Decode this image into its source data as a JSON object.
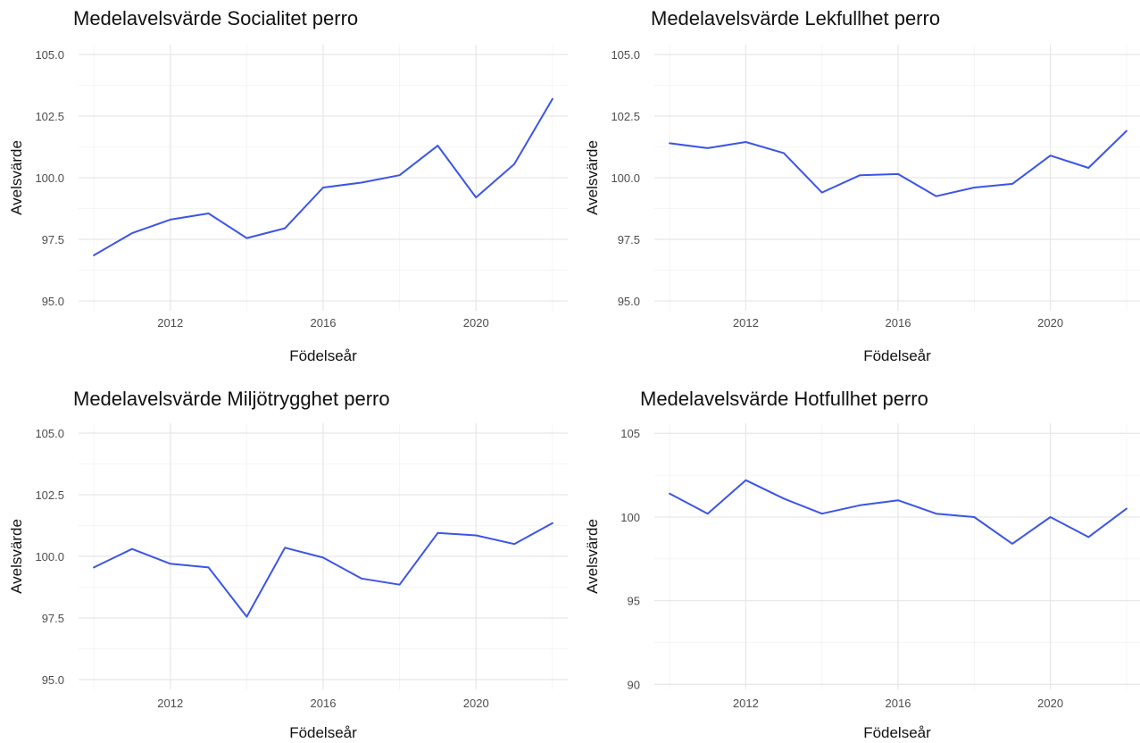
{
  "colors": {
    "line": "#3b55e6",
    "grid_major": "#e6e6e6",
    "grid_minor": "#f2f2f2"
  },
  "chart_data": [
    {
      "type": "line",
      "title": "Medelavelsvärde Socialitet perro",
      "xlabel": "Födelseår",
      "ylabel": "Avelsvärde",
      "xlim": [
        2009.6,
        2022.4
      ],
      "ylim": [
        94.6,
        105.4
      ],
      "xticks": [
        2012,
        2016,
        2020
      ],
      "xtick_labels": [
        "2012",
        "2016",
        "2020"
      ],
      "yticks": [
        95,
        97.5,
        100,
        102.5,
        105
      ],
      "ytick_labels": [
        "95.0",
        "97.5",
        "100.0",
        "102.5",
        "105.0"
      ],
      "grid": true,
      "x": [
        2010,
        2011,
        2012,
        2013,
        2014,
        2015,
        2016,
        2017,
        2018,
        2019,
        2020,
        2021,
        2022
      ],
      "y": [
        96.85,
        97.75,
        98.3,
        98.55,
        97.55,
        97.95,
        99.6,
        99.8,
        100.1,
        101.3,
        99.2,
        100.55,
        103.2
      ]
    },
    {
      "type": "line",
      "title": "Medelavelsvärde Lekfullhet perro",
      "xlabel": "Födelseår",
      "ylabel": "Avelsvärde",
      "xlim": [
        2009.6,
        2022.4
      ],
      "ylim": [
        94.6,
        105.4
      ],
      "xticks": [
        2012,
        2016,
        2020
      ],
      "xtick_labels": [
        "2012",
        "2016",
        "2020"
      ],
      "yticks": [
        95,
        97.5,
        100,
        102.5,
        105
      ],
      "ytick_labels": [
        "95.0",
        "97.5",
        "100.0",
        "102.5",
        "105.0"
      ],
      "grid": true,
      "x": [
        2010,
        2011,
        2012,
        2013,
        2014,
        2015,
        2016,
        2017,
        2018,
        2019,
        2020,
        2021,
        2022
      ],
      "y": [
        101.4,
        101.2,
        101.45,
        101.0,
        99.4,
        100.1,
        100.15,
        99.25,
        99.6,
        99.75,
        100.9,
        100.4,
        101.9
      ]
    },
    {
      "type": "line",
      "title": "Medelavelsvärde Miljötrygghet perro",
      "xlabel": "Födelseår",
      "ylabel": "Avelsvärde",
      "xlim": [
        2009.6,
        2022.4
      ],
      "ylim": [
        94.6,
        105.4
      ],
      "xticks": [
        2012,
        2016,
        2020
      ],
      "xtick_labels": [
        "2012",
        "2016",
        "2020"
      ],
      "yticks": [
        95,
        97.5,
        100,
        102.5,
        105
      ],
      "ytick_labels": [
        "95.0",
        "97.5",
        "100.0",
        "102.5",
        "105.0"
      ],
      "grid": true,
      "x": [
        2010,
        2011,
        2012,
        2013,
        2014,
        2015,
        2016,
        2017,
        2018,
        2019,
        2020,
        2021,
        2022
      ],
      "y": [
        99.55,
        100.3,
        99.7,
        99.55,
        97.55,
        100.35,
        99.95,
        99.1,
        98.85,
        100.95,
        100.85,
        100.5,
        101.35
      ]
    },
    {
      "type": "line",
      "title": "Medelavelsvärde Hotfullhet perro",
      "xlabel": "Födelseår",
      "ylabel": "Avelsvärde",
      "xlim": [
        2009.6,
        2022.4
      ],
      "ylim": [
        89.7,
        105.6
      ],
      "xticks": [
        2012,
        2016,
        2020
      ],
      "xtick_labels": [
        "2012",
        "2016",
        "2020"
      ],
      "yticks": [
        90,
        95,
        100,
        105
      ],
      "ytick_labels": [
        "90",
        "95",
        "100",
        "105"
      ],
      "grid": true,
      "x": [
        2010,
        2011,
        2012,
        2013,
        2014,
        2015,
        2016,
        2017,
        2018,
        2019,
        2020,
        2021,
        2022
      ],
      "y": [
        101.4,
        100.2,
        102.2,
        101.1,
        100.2,
        100.7,
        101.0,
        100.2,
        100.0,
        98.4,
        100.0,
        98.8,
        100.5
      ]
    }
  ]
}
